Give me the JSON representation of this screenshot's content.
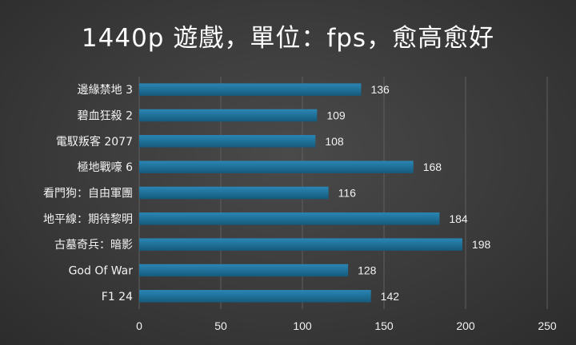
{
  "chart_data": {
    "type": "bar",
    "orientation": "horizontal",
    "title": "1440p 遊戲，單位：fps，愈高愈好",
    "categories": [
      "邊緣禁地 3",
      "碧血狂殺 2",
      "電馭叛客 2077",
      "極地戰嚎 6",
      "看門狗：自由軍團",
      "地平線：期待黎明",
      "古墓奇兵：暗影",
      "God Of War",
      "F1 24"
    ],
    "values": [
      136,
      109,
      108,
      168,
      116,
      184,
      198,
      128,
      142
    ],
    "xlim": [
      0,
      250
    ],
    "xticks": [
      0,
      50,
      100,
      150,
      200,
      250
    ],
    "grid": true,
    "bar_color": "#1a6a92"
  }
}
